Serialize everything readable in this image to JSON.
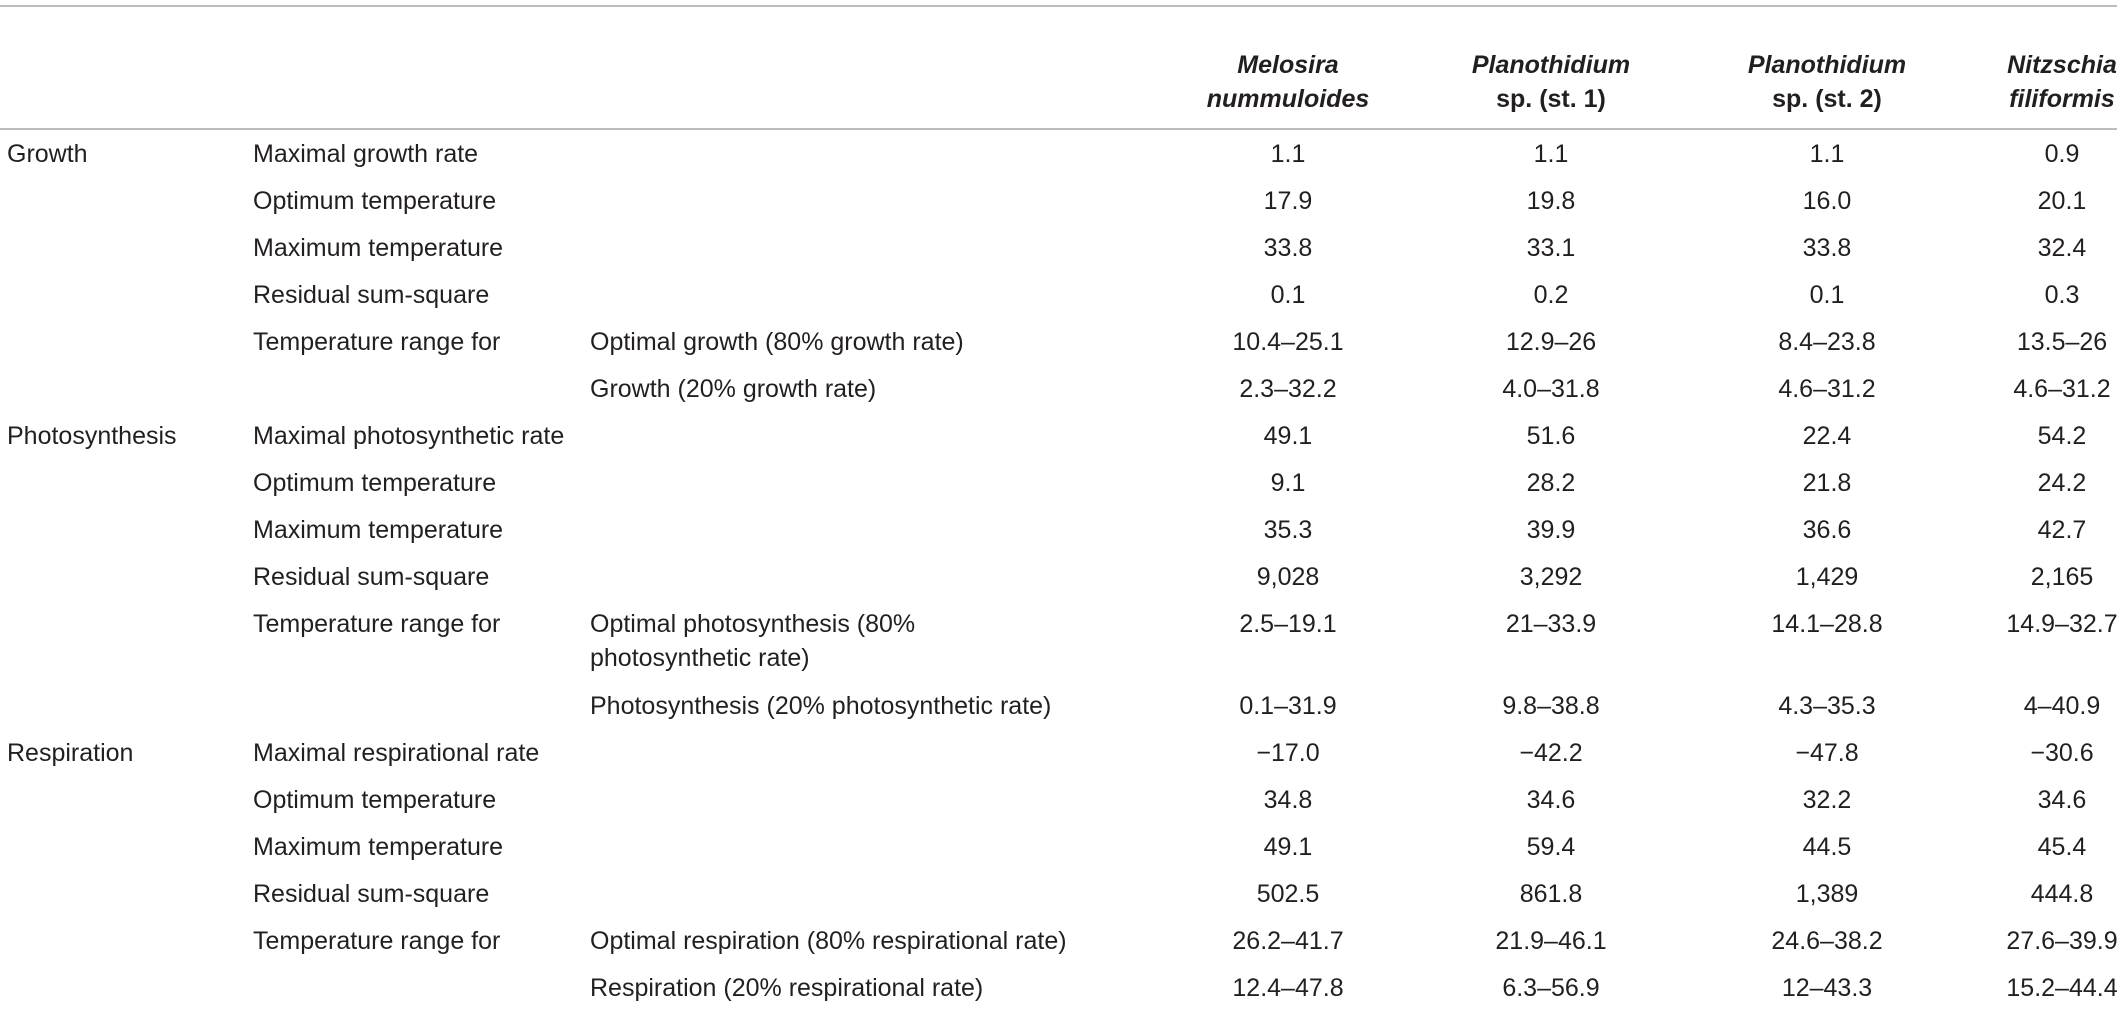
{
  "header": {
    "col1": {
      "genus": "Melosira",
      "rest": "nummuloides"
    },
    "col2": {
      "genus": "Planothidium",
      "rest": "sp. (st. 1)"
    },
    "col3": {
      "genus": "Planothidium",
      "rest": "sp. (st. 2)"
    },
    "col4": {
      "genus": "Nitzschia",
      "rest": "filiformis"
    }
  },
  "rows": [
    {
      "group": "Growth",
      "param": "Maximal growth rate",
      "sub": "",
      "values": [
        "1.1",
        "1.1",
        "1.1",
        "0.9"
      ]
    },
    {
      "group": "",
      "param": "Optimum temperature",
      "sub": "",
      "values": [
        "17.9",
        "19.8",
        "16.0",
        "20.1"
      ]
    },
    {
      "group": "",
      "param": "Maximum temperature",
      "sub": "",
      "values": [
        "33.8",
        "33.1",
        "33.8",
        "32.4"
      ]
    },
    {
      "group": "",
      "param": "Residual sum-square",
      "sub": "",
      "values": [
        "0.1",
        "0.2",
        "0.1",
        "0.3"
      ]
    },
    {
      "group": "",
      "param": "Temperature range for",
      "sub": "Optimal growth (80% growth rate)",
      "values": [
        "10.4–25.1",
        "12.9–26",
        "8.4–23.8",
        "13.5–26"
      ]
    },
    {
      "group": "",
      "param": "",
      "sub": "Growth (20% growth rate)",
      "values": [
        "2.3–32.2",
        "4.0–31.8",
        "4.6–31.2",
        "4.6–31.2"
      ]
    },
    {
      "group": "Photosynthesis",
      "param": "Maximal photosynthetic rate",
      "sub": "",
      "values": [
        "49.1",
        "51.6",
        "22.4",
        "54.2"
      ]
    },
    {
      "group": "",
      "param": "Optimum temperature",
      "sub": "",
      "values": [
        "9.1",
        "28.2",
        "21.8",
        "24.2"
      ]
    },
    {
      "group": "",
      "param": "Maximum temperature",
      "sub": "",
      "values": [
        "35.3",
        "39.9",
        "36.6",
        "42.7"
      ]
    },
    {
      "group": "",
      "param": "Residual sum-square",
      "sub": "",
      "values": [
        "9,028",
        "3,292",
        "1,429",
        "2,165"
      ]
    },
    {
      "group": "",
      "param": "Temperature range for",
      "sub": "Optimal photosynthesis (80%",
      "sub2": "photosynthetic rate)",
      "values": [
        "2.5–19.1",
        "21–33.9",
        "14.1–28.8",
        "14.9–32.7"
      ]
    },
    {
      "group": "",
      "param": "",
      "sub": "Photosynthesis (20% photosynthetic rate)",
      "values": [
        "0.1–31.9",
        "9.8–38.8",
        "4.3–35.3",
        "4–40.9"
      ]
    },
    {
      "group": "Respiration",
      "param": "Maximal respirational rate",
      "sub": "",
      "values": [
        "−17.0",
        "−42.2",
        "−47.8",
        "−30.6"
      ]
    },
    {
      "group": "",
      "param": "Optimum temperature",
      "sub": "",
      "values": [
        "34.8",
        "34.6",
        "32.2",
        "34.6"
      ]
    },
    {
      "group": "",
      "param": "Maximum temperature",
      "sub": "",
      "values": [
        "49.1",
        "59.4",
        "44.5",
        "45.4"
      ]
    },
    {
      "group": "",
      "param": "Residual sum-square",
      "sub": "",
      "values": [
        "502.5",
        "861.8",
        "1,389",
        "444.8"
      ]
    },
    {
      "group": "",
      "param": "Temperature range for",
      "sub": "Optimal respiration (80% respirational rate)",
      "values": [
        "26.2–41.7",
        "21.9–46.1",
        "24.6–38.2",
        "27.6–39.9"
      ]
    },
    {
      "group": "",
      "param": "",
      "sub": "Respiration (20% respirational rate)",
      "values": [
        "12.4–47.8",
        "6.3–56.9",
        "12–43.3",
        "15.2–44.4"
      ]
    }
  ]
}
